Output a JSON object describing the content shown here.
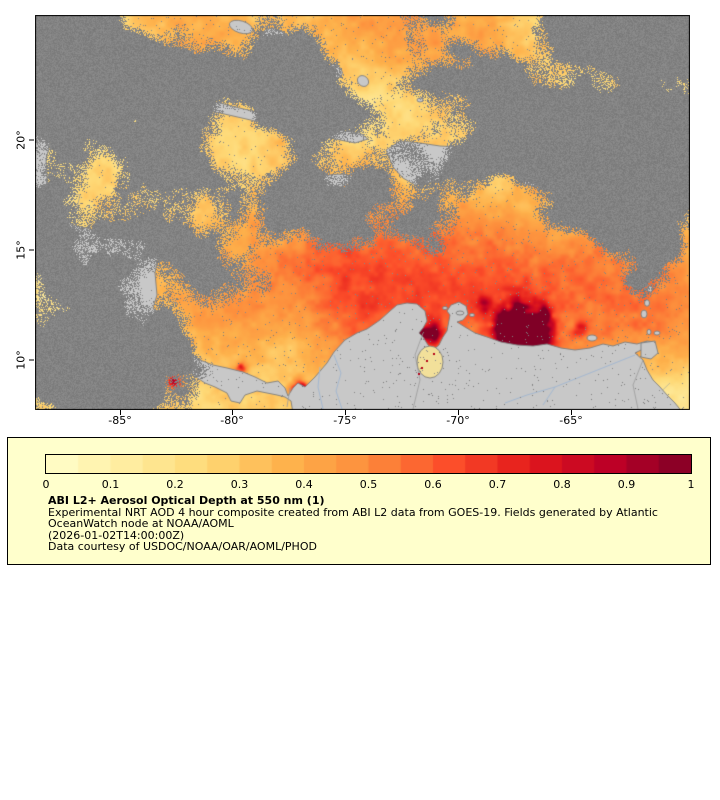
{
  "map": {
    "lon_ticks": [
      "-85°",
      "-80°",
      "-75°",
      "-70°",
      "-65°"
    ],
    "lat_ticks": [
      "20°",
      "15°",
      "10°"
    ],
    "colors": {
      "cloud_gray": "#828282",
      "land_gray": "#c8c8c8",
      "coast_stroke": "#7d7d7d",
      "river_blue": "#9fb6d0",
      "border_line": "#9a9a9a",
      "frame": "#000000",
      "hotspot_red": "#b50016",
      "lake_fill": "#f2e09a"
    }
  },
  "legend": {
    "background": "#ffffcc",
    "border": "#000000",
    "colorbar_ticks": [
      "0",
      "0.1",
      "0.2",
      "0.3",
      "0.4",
      "0.5",
      "0.6",
      "0.7",
      "0.8",
      "0.9",
      "1"
    ],
    "colormap_stops": [
      "#ffffcc",
      "#ffeda0",
      "#fed976",
      "#feb24c",
      "#fd8d3c",
      "#fc4e2a",
      "#e31a1c",
      "#bd0026",
      "#800026"
    ],
    "title": "ABI L2+ Aerosol Optical Depth at 550 nm (1)",
    "description": "Experimental NRT AOD 4 hour composite created from ABI L2 data from GOES-19. Fields generated by Atlantic OceanWatch node at NOAA/AOML",
    "timestamp": "(2026-01-02T14:00:00Z)",
    "courtesy": "Data courtesy of USDOC/NOAA/OAR/AOML/PHOD"
  },
  "chart_data": {
    "type": "heatmap",
    "title": "ABI L2+ Aerosol Optical Depth at 550 nm (1)",
    "variable": "Aerosol Optical Depth at 550 nm",
    "colorbar_range": [
      0,
      1
    ],
    "colorbar_tick_step": 0.1,
    "x_axis_ticks_deg_lon": [
      -85,
      -80,
      -75,
      -70,
      -65
    ],
    "y_axis_ticks_deg_lat": [
      20,
      15,
      10
    ],
    "legend_position": "bottom"
  }
}
